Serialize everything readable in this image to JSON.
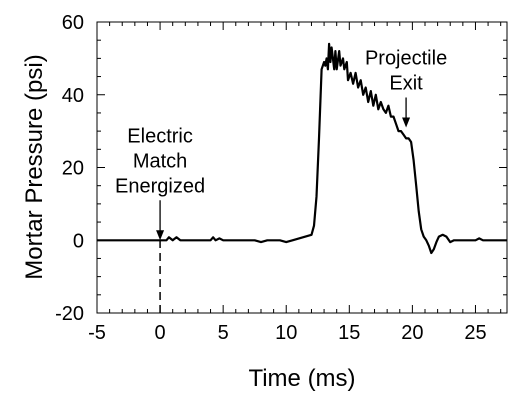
{
  "chart_data": {
    "type": "line",
    "title": "",
    "xlabel": "Time (ms)",
    "ylabel": "Mortar Pressure (psi)",
    "xlim": [
      -5,
      27.5
    ],
    "ylim": [
      -20,
      60
    ],
    "xticks": [
      -5,
      0,
      5,
      10,
      15,
      20,
      25
    ],
    "xtick_labels": [
      "-5",
      "0",
      "5",
      "10",
      "15",
      "20",
      "25"
    ],
    "yticks": [
      -20,
      0,
      20,
      40,
      60
    ],
    "ytick_labels": [
      "-20",
      "0",
      "20",
      "40",
      "60"
    ],
    "grid": false,
    "legend": "none",
    "line_color": "#000000",
    "series": [
      {
        "x": [
          -5,
          0,
          0.5,
          0.7,
          1.0,
          1.3,
          1.6,
          2,
          3,
          4,
          4.2,
          4.4,
          4.7,
          5,
          6,
          7.5,
          8,
          8.5,
          9.5,
          10,
          10.5,
          12,
          12.2,
          12.4,
          12.6,
          12.8,
          13.0,
          13.1,
          13.2,
          13.3,
          13.4,
          13.5,
          13.6,
          13.8,
          13.9,
          14.0,
          14.2,
          14.3,
          14.5,
          14.6,
          14.8,
          14.9,
          15.1,
          15.3,
          15.5,
          15.7,
          15.9,
          16.1,
          16.3,
          16.5,
          16.7,
          16.9,
          17.1,
          17.3,
          17.5,
          17.7,
          17.9,
          18.1,
          18.3,
          18.5,
          18.7,
          18.9,
          19.1,
          19.3,
          19.5,
          19.7,
          19.9,
          20.1,
          20.3,
          20.5,
          20.7,
          20.9,
          21.1,
          21.3,
          21.5,
          21.7,
          21.9,
          22.1,
          22.4,
          22.7,
          23.0,
          23.3,
          24,
          25,
          25.3,
          25.6,
          26,
          27,
          27.5
        ],
        "y": [
          0,
          0,
          0,
          0.8,
          0,
          0.8,
          0,
          0,
          0,
          0,
          0.8,
          0,
          0.5,
          0,
          0,
          0,
          -0.5,
          0,
          0,
          -0.5,
          0,
          1.5,
          4,
          12,
          28,
          47,
          49,
          48,
          50,
          47,
          54,
          49,
          53,
          47,
          52,
          47,
          52,
          48,
          50,
          47,
          49,
          44,
          46,
          43,
          46,
          42,
          44,
          40,
          42,
          38,
          41,
          37,
          40,
          36,
          38,
          36,
          35,
          37,
          34,
          34,
          32,
          30,
          30,
          29,
          28,
          28,
          27,
          22,
          15,
          8,
          3,
          1,
          0,
          -1.5,
          -3.5,
          -2.5,
          -0.5,
          1,
          1.5,
          1,
          -0.5,
          0,
          0,
          0,
          0.5,
          0,
          0,
          0,
          0
        ]
      }
    ],
    "annotations": [
      {
        "lines": [
          "Electric",
          "Match",
          "Energized"
        ],
        "x": 0,
        "arrow_tip_y": 0
      },
      {
        "lines": [
          "Projectile",
          "Exit"
        ],
        "x": 19.5,
        "arrow_tip_y": 31
      }
    ],
    "reference_lines": [
      {
        "x": 0,
        "y_from": -20,
        "y_to": 0,
        "style": "dashed"
      }
    ]
  }
}
